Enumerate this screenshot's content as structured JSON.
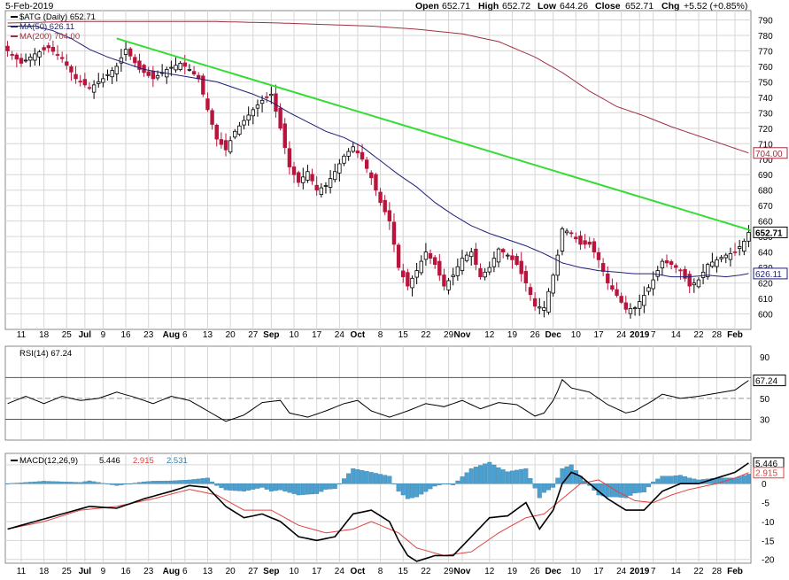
{
  "chart_data": [
    {
      "type": "candlestick",
      "header": {
        "date": "5-Feb-2019",
        "open_label": "Open",
        "open": "652.71",
        "high_label": "High",
        "high": "652.72",
        "low_label": "Low",
        "low": "644.26",
        "close_label": "Close",
        "close": "652.71",
        "chg_label": "Chg",
        "chg": "+5.52 (+0.85%)"
      },
      "legend": [
        {
          "name": "$ATG (Daily) 652.71",
          "color": "#000000"
        },
        {
          "name": "MA(50) 626.11",
          "color": "#1f1f7a"
        },
        {
          "name": "MA(200) 704.00",
          "color": "#a03040"
        }
      ],
      "y_ticks": [
        600,
        610,
        620,
        630,
        640,
        650,
        660,
        670,
        680,
        690,
        700,
        710,
        720,
        730,
        740,
        750,
        760,
        770,
        780,
        790
      ],
      "ylim": [
        590,
        796
      ],
      "x_labels": [
        {
          "i": 3,
          "t": "11"
        },
        {
          "i": 8,
          "t": "18"
        },
        {
          "i": 13,
          "t": "25"
        },
        {
          "i": 17,
          "t": "Jul",
          "bold": true
        },
        {
          "i": 21,
          "t": "9"
        },
        {
          "i": 26,
          "t": "16"
        },
        {
          "i": 31,
          "t": "23"
        },
        {
          "i": 36,
          "t": "Aug",
          "bold": true
        },
        {
          "i": 39,
          "t": "6"
        },
        {
          "i": 44,
          "t": "13"
        },
        {
          "i": 49,
          "t": "20"
        },
        {
          "i": 54,
          "t": "27"
        },
        {
          "i": 58,
          "t": "Sep",
          "bold": true
        },
        {
          "i": 63,
          "t": "10"
        },
        {
          "i": 68,
          "t": "17"
        },
        {
          "i": 73,
          "t": "24"
        },
        {
          "i": 77,
          "t": "Oct",
          "bold": true
        },
        {
          "i": 82,
          "t": "8"
        },
        {
          "i": 87,
          "t": "15"
        },
        {
          "i": 92,
          "t": "22"
        },
        {
          "i": 97,
          "t": "29"
        },
        {
          "i": 100,
          "t": "Nov",
          "bold": true
        },
        {
          "i": 106,
          "t": "12"
        },
        {
          "i": 111,
          "t": "19"
        },
        {
          "i": 116,
          "t": "26"
        },
        {
          "i": 120,
          "t": "Dec",
          "bold": true
        },
        {
          "i": 125,
          "t": "10"
        },
        {
          "i": 130,
          "t": "17"
        },
        {
          "i": 135,
          "t": "24"
        },
        {
          "i": 139,
          "t": "2019",
          "bold": true
        },
        {
          "i": 142,
          "t": "7"
        },
        {
          "i": 147,
          "t": "14"
        },
        {
          "i": 152,
          "t": "22"
        },
        {
          "i": 156,
          "t": "28"
        },
        {
          "i": 160,
          "t": "Feb",
          "bold": true
        }
      ],
      "price_labels": [
        {
          "value": 704.0,
          "text": "704.00",
          "color": "#a03040"
        },
        {
          "value": 652.71,
          "text": "652.71",
          "color": "#000000",
          "bold": true
        },
        {
          "value": 626.11,
          "text": "626.11",
          "color": "#1f1f7a"
        }
      ],
      "trendline": {
        "from": {
          "i": 24,
          "v": 778
        },
        "to": {
          "i": 164,
          "v": 654
        },
        "color": "#33dd33"
      },
      "anchors_close": [
        [
          0,
          770
        ],
        [
          3,
          762
        ],
        [
          6,
          768
        ],
        [
          9,
          772
        ],
        [
          12,
          765
        ],
        [
          15,
          752
        ],
        [
          18,
          746
        ],
        [
          21,
          752
        ],
        [
          24,
          760
        ],
        [
          26,
          771
        ],
        [
          29,
          758
        ],
        [
          32,
          752
        ],
        [
          35,
          758
        ],
        [
          38,
          762
        ],
        [
          40,
          758
        ],
        [
          42,
          752
        ],
        [
          44,
          732
        ],
        [
          46,
          713
        ],
        [
          48,
          706
        ],
        [
          50,
          718
        ],
        [
          52,
          725
        ],
        [
          54,
          732
        ],
        [
          56,
          738
        ],
        [
          58,
          742
        ],
        [
          60,
          720
        ],
        [
          62,
          695
        ],
        [
          64,
          685
        ],
        [
          66,
          692
        ],
        [
          68,
          680
        ],
        [
          70,
          683
        ],
        [
          72,
          692
        ],
        [
          74,
          702
        ],
        [
          76,
          708
        ],
        [
          78,
          700
        ],
        [
          80,
          688
        ],
        [
          82,
          672
        ],
        [
          84,
          660
        ],
        [
          86,
          630
        ],
        [
          88,
          618
        ],
        [
          90,
          628
        ],
        [
          92,
          640
        ],
        [
          94,
          632
        ],
        [
          96,
          618
        ],
        [
          98,
          625
        ],
        [
          100,
          636
        ],
        [
          102,
          640
        ],
        [
          104,
          624
        ],
        [
          106,
          630
        ],
        [
          108,
          642
        ],
        [
          110,
          638
        ],
        [
          112,
          632
        ],
        [
          114,
          620
        ],
        [
          116,
          605
        ],
        [
          118,
          604
        ],
        [
          120,
          625
        ],
        [
          121,
          638
        ],
        [
          122,
          655
        ],
        [
          124,
          652
        ],
        [
          126,
          645
        ],
        [
          128,
          645
        ],
        [
          130,
          635
        ],
        [
          132,
          620
        ],
        [
          134,
          612
        ],
        [
          136,
          603
        ],
        [
          138,
          604
        ],
        [
          140,
          612
        ],
        [
          142,
          622
        ],
        [
          144,
          634
        ],
        [
          146,
          632
        ],
        [
          148,
          628
        ],
        [
          150,
          618
        ],
        [
          152,
          622
        ],
        [
          154,
          632
        ],
        [
          156,
          635
        ],
        [
          158,
          638
        ],
        [
          160,
          640
        ],
        [
          162,
          647
        ],
        [
          163,
          652.71
        ]
      ],
      "anchors_ma50": [
        [
          0,
          786
        ],
        [
          6,
          786
        ],
        [
          10,
          783
        ],
        [
          14,
          778
        ],
        [
          18,
          771
        ],
        [
          22,
          766
        ],
        [
          26,
          762
        ],
        [
          30,
          758
        ],
        [
          34,
          756
        ],
        [
          38,
          754
        ],
        [
          42,
          752
        ],
        [
          46,
          750
        ],
        [
          50,
          746
        ],
        [
          54,
          742
        ],
        [
          58,
          737
        ],
        [
          62,
          730
        ],
        [
          66,
          724
        ],
        [
          70,
          718
        ],
        [
          74,
          714
        ],
        [
          78,
          708
        ],
        [
          82,
          699
        ],
        [
          86,
          690
        ],
        [
          90,
          682
        ],
        [
          94,
          672
        ],
        [
          98,
          664
        ],
        [
          102,
          657
        ],
        [
          106,
          652
        ],
        [
          110,
          648
        ],
        [
          114,
          644
        ],
        [
          118,
          639
        ],
        [
          122,
          633
        ],
        [
          126,
          630
        ],
        [
          130,
          628
        ],
        [
          134,
          627
        ],
        [
          138,
          626
        ],
        [
          142,
          626
        ],
        [
          146,
          624
        ],
        [
          150,
          624
        ],
        [
          154,
          625
        ],
        [
          158,
          624
        ],
        [
          161,
          625
        ],
        [
          163,
          626.11
        ]
      ],
      "anchors_ma200": [
        [
          0,
          788
        ],
        [
          15,
          789
        ],
        [
          30,
          789
        ],
        [
          45,
          789
        ],
        [
          60,
          788
        ],
        [
          70,
          787
        ],
        [
          80,
          786
        ],
        [
          90,
          784
        ],
        [
          100,
          781
        ],
        [
          108,
          776
        ],
        [
          116,
          766
        ],
        [
          122,
          756
        ],
        [
          128,
          744
        ],
        [
          134,
          734
        ],
        [
          140,
          728
        ],
        [
          146,
          721
        ],
        [
          152,
          715
        ],
        [
          158,
          709
        ],
        [
          163,
          704.0
        ]
      ],
      "n_bars": 164
    },
    {
      "type": "line",
      "name": "RSI(14) 67.24",
      "label_value": "67.24",
      "y_ticks": [
        30,
        50,
        70,
        90
      ],
      "ylim": [
        10,
        100
      ],
      "levels": [
        30,
        50,
        70
      ],
      "anchors": [
        [
          0,
          45
        ],
        [
          4,
          52
        ],
        [
          8,
          45
        ],
        [
          12,
          52
        ],
        [
          16,
          48
        ],
        [
          20,
          50
        ],
        [
          24,
          56
        ],
        [
          28,
          51
        ],
        [
          32,
          45
        ],
        [
          36,
          52
        ],
        [
          40,
          48
        ],
        [
          44,
          38
        ],
        [
          48,
          28
        ],
        [
          52,
          34
        ],
        [
          56,
          46
        ],
        [
          60,
          48
        ],
        [
          62,
          36
        ],
        [
          66,
          32
        ],
        [
          70,
          38
        ],
        [
          74,
          45
        ],
        [
          77,
          48
        ],
        [
          80,
          38
        ],
        [
          84,
          32
        ],
        [
          88,
          38
        ],
        [
          92,
          45
        ],
        [
          96,
          42
        ],
        [
          100,
          48
        ],
        [
          104,
          40
        ],
        [
          108,
          46
        ],
        [
          112,
          44
        ],
        [
          116,
          33
        ],
        [
          118,
          36
        ],
        [
          120,
          48
        ],
        [
          121,
          57
        ],
        [
          122,
          68
        ],
        [
          124,
          60
        ],
        [
          128,
          56
        ],
        [
          132,
          44
        ],
        [
          136,
          36
        ],
        [
          138,
          38
        ],
        [
          142,
          48
        ],
        [
          144,
          54
        ],
        [
          148,
          50
        ],
        [
          152,
          52
        ],
        [
          156,
          55
        ],
        [
          160,
          58
        ],
        [
          163,
          67.24
        ]
      ]
    },
    {
      "type": "line",
      "name": "MACD(12,26,9)",
      "macd_value": "5.446",
      "signal_value": "2.915",
      "hist_value": "2.531",
      "y_ticks": [
        -20,
        -15,
        -10,
        -5,
        0,
        5
      ],
      "ylim": [
        -21,
        8
      ],
      "macd_anchors": [
        [
          0,
          -12
        ],
        [
          6,
          -10
        ],
        [
          12,
          -8
        ],
        [
          18,
          -6
        ],
        [
          24,
          -6.5
        ],
        [
          30,
          -4
        ],
        [
          36,
          -2
        ],
        [
          40,
          -0.5
        ],
        [
          44,
          -1
        ],
        [
          48,
          -6
        ],
        [
          52,
          -9
        ],
        [
          56,
          -8
        ],
        [
          60,
          -10
        ],
        [
          64,
          -14
        ],
        [
          68,
          -15
        ],
        [
          72,
          -14
        ],
        [
          76,
          -8
        ],
        [
          80,
          -7
        ],
        [
          84,
          -10
        ],
        [
          86,
          -15
        ],
        [
          88,
          -19
        ],
        [
          90,
          -20.5
        ],
        [
          94,
          -19
        ],
        [
          98,
          -19
        ],
        [
          102,
          -14
        ],
        [
          106,
          -9
        ],
        [
          110,
          -8.5
        ],
        [
          114,
          -5
        ],
        [
          117,
          -12
        ],
        [
          120,
          -7
        ],
        [
          122,
          0
        ],
        [
          124,
          3
        ],
        [
          126,
          2
        ],
        [
          128,
          0
        ],
        [
          132,
          -4
        ],
        [
          136,
          -7
        ],
        [
          140,
          -7
        ],
        [
          144,
          -2
        ],
        [
          148,
          0
        ],
        [
          152,
          0
        ],
        [
          156,
          1.5
        ],
        [
          160,
          3
        ],
        [
          163,
          5.446
        ]
      ],
      "signal_anchors": [
        [
          0,
          -12
        ],
        [
          8,
          -10
        ],
        [
          16,
          -7
        ],
        [
          24,
          -6
        ],
        [
          32,
          -4
        ],
        [
          40,
          -1.5
        ],
        [
          46,
          -3
        ],
        [
          52,
          -7
        ],
        [
          58,
          -7
        ],
        [
          64,
          -11
        ],
        [
          70,
          -13
        ],
        [
          76,
          -12
        ],
        [
          80,
          -10
        ],
        [
          86,
          -13
        ],
        [
          90,
          -17
        ],
        [
          96,
          -19
        ],
        [
          102,
          -18
        ],
        [
          108,
          -13
        ],
        [
          114,
          -9
        ],
        [
          118,
          -8
        ],
        [
          122,
          -4
        ],
        [
          126,
          0
        ],
        [
          130,
          1
        ],
        [
          134,
          -2
        ],
        [
          138,
          -4.5
        ],
        [
          142,
          -5
        ],
        [
          146,
          -3
        ],
        [
          150,
          -1.5
        ],
        [
          156,
          0
        ],
        [
          160,
          1.5
        ],
        [
          163,
          2.915
        ]
      ]
    }
  ],
  "colors": {
    "up": "#000000",
    "down": "#b8143c",
    "grid": "#d6d6d6",
    "ma50": "#1f1f7a",
    "ma200": "#a03040",
    "trend": "#33dd33",
    "hist": "#4aa0d0",
    "signal": "#e04040"
  }
}
